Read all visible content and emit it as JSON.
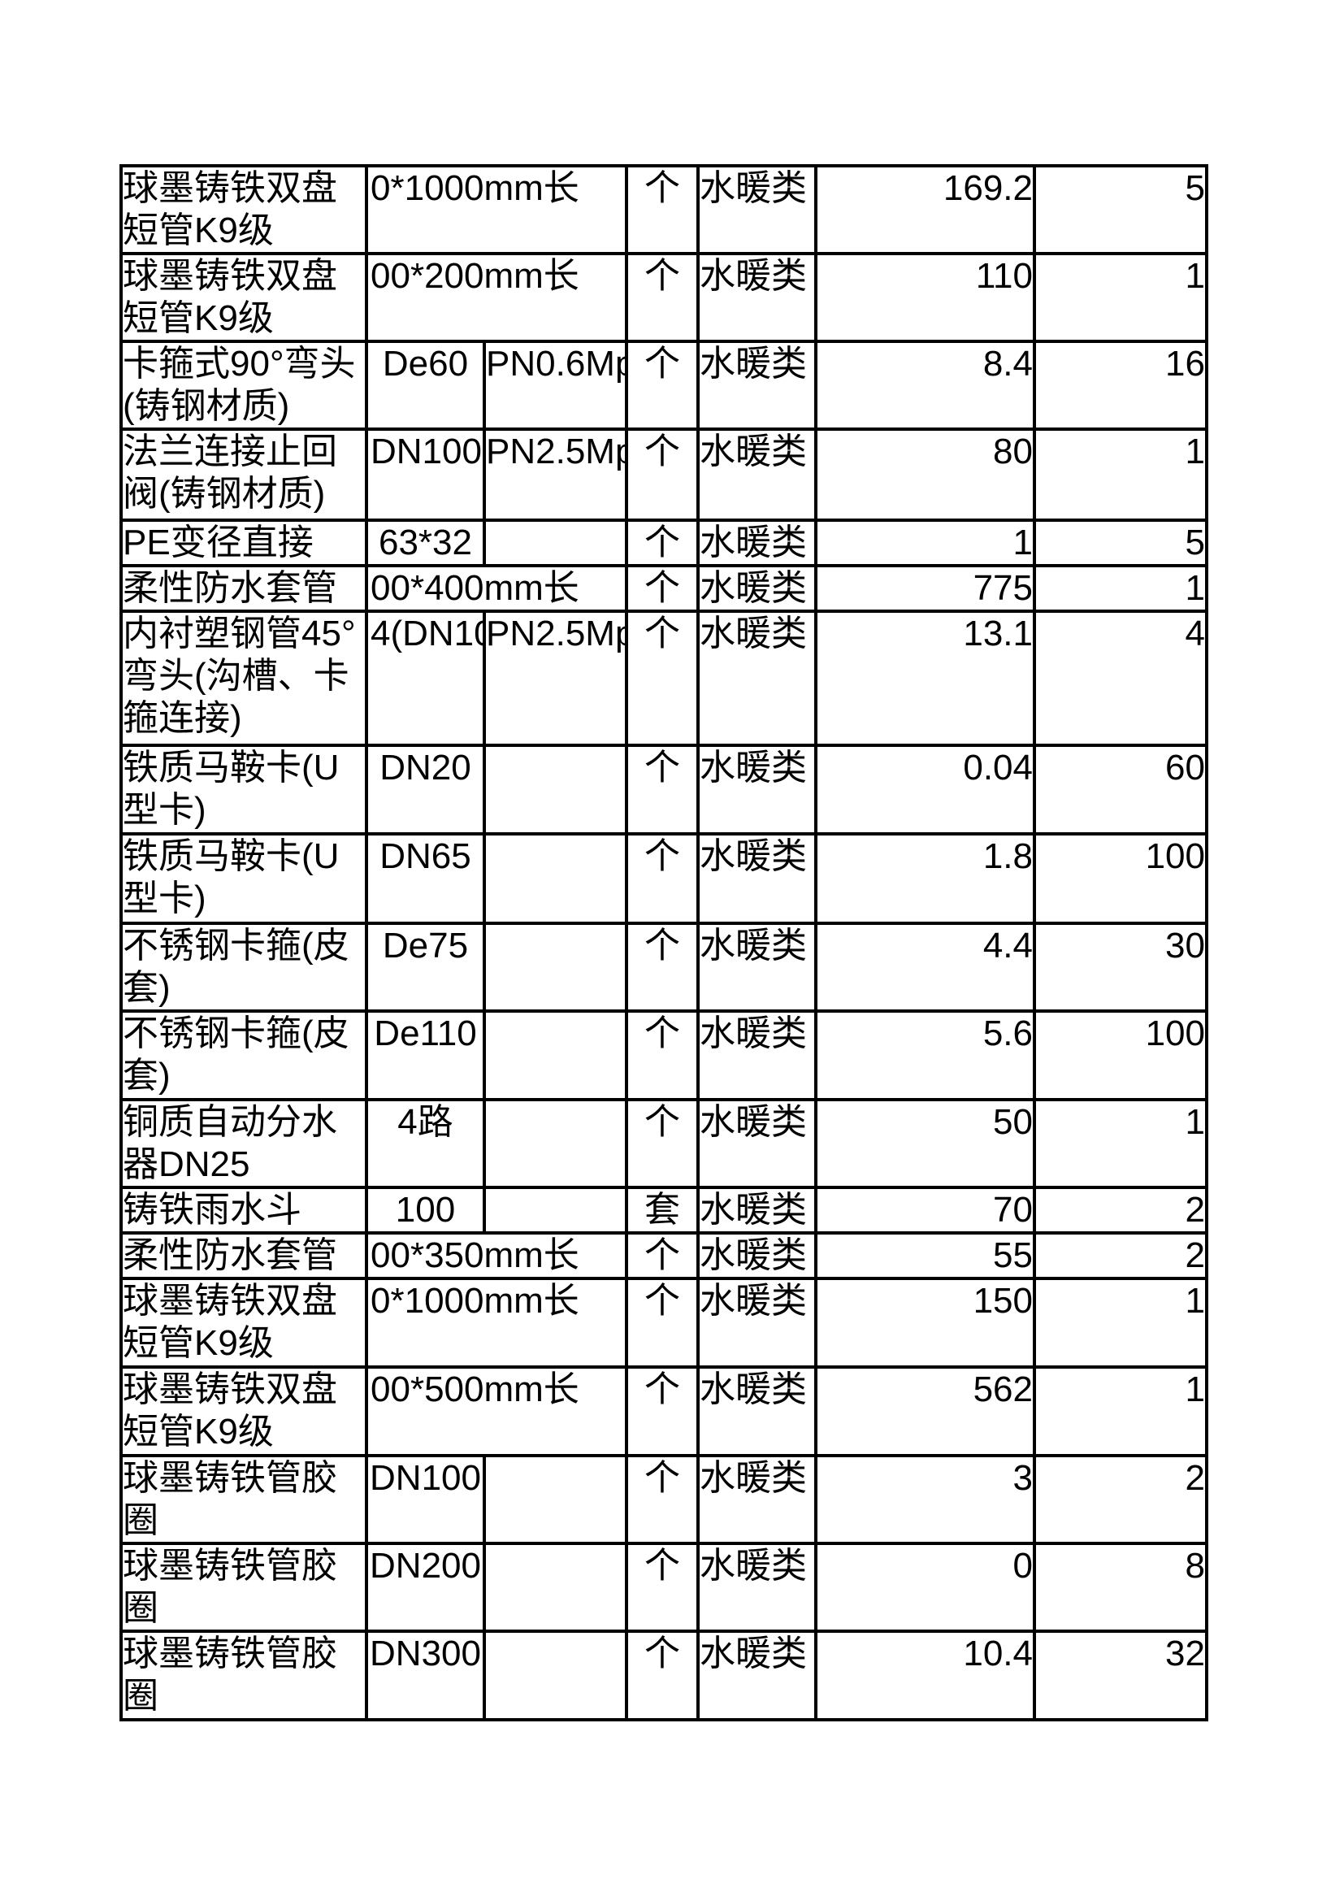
{
  "page": {
    "background_color": "#ffffff",
    "text_color": "#000000",
    "table_border_color": "#000000"
  },
  "table": {
    "category_label": "水暖类",
    "rows": [
      {
        "name": "球墨铸铁双盘短管K9级",
        "spec": "0*1000mm长",
        "spec2": "",
        "merged": true,
        "spec_left": true,
        "unit": "个",
        "category": "水暖类",
        "price": "169.2",
        "qty": "5"
      },
      {
        "name": "球墨铸铁双盘短管K9级",
        "spec": "00*200mm长",
        "spec2": "",
        "merged": true,
        "spec_left": true,
        "unit": "个",
        "category": "水暖类",
        "price": "110",
        "qty": "1"
      },
      {
        "name": "卡箍式90°弯头(铸钢材质)",
        "spec": "De60",
        "spec2": "PN0.6Mp",
        "merged": false,
        "spec_left": false,
        "unit": "个",
        "category": "水暖类",
        "price": "8.4",
        "qty": "16"
      },
      {
        "name": "法兰连接止回阀(铸钢材质)",
        "spec": "DN100",
        "spec2": "PN2.5Mp",
        "merged": false,
        "spec_left": true,
        "unit": "个",
        "category": "水暖类",
        "price": "80",
        "qty": "1"
      },
      {
        "name": "PE变径直接",
        "spec": "63*32",
        "spec2": "",
        "merged": false,
        "spec_left": false,
        "unit": "个",
        "category": "水暖类",
        "price": "1",
        "qty": "5"
      },
      {
        "name": "柔性防水套管",
        "spec": "00*400mm长",
        "spec2": "",
        "merged": true,
        "spec_left": true,
        "unit": "个",
        "category": "水暖类",
        "price": "775",
        "qty": "1"
      },
      {
        "name": "内衬塑钢管45°弯头(沟槽、卡箍连接)",
        "spec": "4(DN10",
        "spec2": "PN2.5Mp",
        "merged": false,
        "spec_left": true,
        "unit": "个",
        "category": "水暖类",
        "price": "13.1",
        "qty": "4"
      },
      {
        "name": "铁质马鞍卡(U型卡)",
        "spec": "DN20",
        "spec2": "",
        "merged": false,
        "spec_left": false,
        "unit": "个",
        "category": "水暖类",
        "price": "0.04",
        "qty": "60"
      },
      {
        "name": "铁质马鞍卡(U型卡)",
        "spec": "DN65",
        "spec2": "",
        "merged": false,
        "spec_left": false,
        "unit": "个",
        "category": "水暖类",
        "price": "1.8",
        "qty": "100"
      },
      {
        "name": "不锈钢卡箍(皮套)",
        "spec": "De75",
        "spec2": "",
        "merged": false,
        "spec_left": false,
        "unit": "个",
        "category": "水暖类",
        "price": "4.4",
        "qty": "30"
      },
      {
        "name": "不锈钢卡箍(皮套)",
        "spec": "De110",
        "spec2": "",
        "merged": false,
        "spec_left": false,
        "unit": "个",
        "category": "水暖类",
        "price": "5.6",
        "qty": "100"
      },
      {
        "name": "铜质自动分水器DN25",
        "spec": "4路",
        "spec2": "",
        "merged": false,
        "spec_left": false,
        "unit": "个",
        "category": "水暖类",
        "price": "50",
        "qty": "1"
      },
      {
        "name": "铸铁雨水斗",
        "spec": "100",
        "spec2": "",
        "merged": false,
        "spec_left": false,
        "unit": "套",
        "category": "水暖类",
        "price": "70",
        "qty": "2"
      },
      {
        "name": "柔性防水套管",
        "spec": "00*350mm长",
        "spec2": "",
        "merged": true,
        "spec_left": true,
        "unit": "个",
        "category": "水暖类",
        "price": "55",
        "qty": "2"
      },
      {
        "name": "球墨铸铁双盘短管K9级",
        "spec": "0*1000mm长",
        "spec2": "",
        "merged": true,
        "spec_left": true,
        "unit": "个",
        "category": "水暖类",
        "price": "150",
        "qty": "1"
      },
      {
        "name": "球墨铸铁双盘短管K9级",
        "spec": "00*500mm长",
        "spec2": "",
        "merged": true,
        "spec_left": true,
        "unit": "个",
        "category": "水暖类",
        "price": "562",
        "qty": "1"
      },
      {
        "name": "球墨铸铁管胶圈",
        "spec": "DN100",
        "spec2": "",
        "merged": false,
        "spec_left": false,
        "unit": "个",
        "category": "水暖类",
        "price": "3",
        "qty": "2"
      },
      {
        "name": "球墨铸铁管胶圈",
        "spec": "DN200",
        "spec2": "",
        "merged": false,
        "spec_left": false,
        "unit": "个",
        "category": "水暖类",
        "price": "0",
        "qty": "8"
      },
      {
        "name": "球墨铸铁管胶圈",
        "spec": "DN300",
        "spec2": "",
        "merged": false,
        "spec_left": false,
        "unit": "个",
        "category": "水暖类",
        "price": "10.4",
        "qty": "32"
      }
    ]
  }
}
